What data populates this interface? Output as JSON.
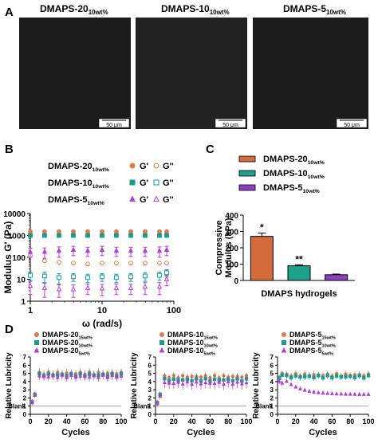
{
  "panels": {
    "A": {
      "letter": "A",
      "images": [
        {
          "title": "DMAPS-20",
          "subscript": "10wt%",
          "scale_bar": "50 μm"
        },
        {
          "title": "DMAPS-10",
          "subscript": "10wt%",
          "scale_bar": "50 μm"
        },
        {
          "title": "DMAPS-5",
          "subscript": "10wt%",
          "scale_bar": "50 μm"
        }
      ]
    },
    "B": {
      "letter": "B"
    },
    "C": {
      "letter": "C"
    },
    "D": {
      "letter": "D"
    }
  },
  "colors": {
    "dmaps20": "#e07a4a",
    "dmaps10": "#1a9a8c",
    "dmaps5": "#b23fd0",
    "bar20": "#d36b3b",
    "bar10": "#1fa08a",
    "bar5": "#8e3fbf",
    "blank_line": "#9aa0a6"
  },
  "chart_data": [
    {
      "id": "B",
      "type": "scatter",
      "xlabel": "ω (rad/s)",
      "ylabel": "Modulus G' (Pa)",
      "xscale": "log",
      "yscale": "log",
      "xlim": [
        1,
        100
      ],
      "ylim": [
        1,
        10000
      ],
      "xticks": [
        "1",
        "10",
        "100"
      ],
      "yticks": [
        "1",
        "10",
        "100",
        "1000",
        "10000"
      ],
      "x": [
        1.0,
        1.58,
        2.51,
        3.98,
        6.31,
        10.0,
        15.8,
        25.1,
        39.8,
        63.1,
        79.4
      ],
      "legend": [
        {
          "name": "DMAPS-20",
          "sub": "10wt%",
          "a": "G'",
          "b": "G''"
        },
        {
          "name": "DMAPS-10",
          "sub": "10wt%",
          "a": "G'",
          "b": "G''"
        },
        {
          "name": "DMAPS-5",
          "sub": "10wt%",
          "a": "G'",
          "b": "G''"
        }
      ],
      "series": [
        {
          "name": "DMAPS-20 G'",
          "color": "#e07a4a",
          "marker": "circle",
          "filled": true,
          "values": [
            1500,
            1500,
            1500,
            1500,
            1500,
            1500,
            1500,
            1500,
            1500,
            1500,
            1500
          ]
        },
        {
          "name": "DMAPS-20 G''",
          "color": "#e07a4a",
          "marker": "circle",
          "filled": false,
          "values": [
            120,
            70,
            60,
            55,
            50,
            55,
            55,
            55,
            55,
            55,
            55
          ]
        },
        {
          "name": "DMAPS-10 G'",
          "color": "#1a9a8c",
          "marker": "square",
          "filled": true,
          "values": [
            1000,
            1000,
            1000,
            1000,
            1000,
            1000,
            1000,
            1000,
            1000,
            1000,
            1000
          ]
        },
        {
          "name": "DMAPS-10 G''",
          "color": "#1a9a8c",
          "marker": "square",
          "filled": false,
          "values": [
            15,
            14,
            12,
            13,
            12,
            13,
            12,
            13,
            14,
            15,
            20
          ],
          "err": [
            6,
            7,
            6,
            5,
            5,
            5,
            5,
            5,
            6,
            6,
            7
          ]
        },
        {
          "name": "DMAPS-5 G'",
          "color": "#b23fd0",
          "marker": "triangle",
          "filled": true,
          "values": [
            180,
            180,
            200,
            220,
            200,
            220,
            200,
            200,
            200,
            200,
            220
          ],
          "err": [
            80,
            90,
            100,
            100,
            90,
            100,
            90,
            90,
            90,
            100,
            100
          ]
        },
        {
          "name": "DMAPS-5 G''",
          "color": "#b23fd0",
          "marker": "triangle",
          "filled": false,
          "values": [
            5,
            4,
            3.5,
            3.5,
            4,
            3.8,
            4,
            4,
            4.5,
            4.5,
            10
          ],
          "err": [
            3,
            2.5,
            2,
            2,
            2,
            2,
            2,
            2,
            2.5,
            2.5,
            5
          ]
        }
      ]
    },
    {
      "id": "C",
      "type": "bar",
      "xlabel": "DMAPS hydrogels",
      "ylabel": "Compressive Modulus (kPa)",
      "ylim": [
        0,
        400
      ],
      "yticks": [
        "0",
        "100",
        "200",
        "300",
        "400"
      ],
      "legend": [
        {
          "name": "DMAPS-20",
          "sub": "10wt%"
        },
        {
          "name": "DMAPS-10",
          "sub": "10wt%"
        },
        {
          "name": "DMAPS-5",
          "sub": "10wt%"
        }
      ],
      "categories": [
        "DMAPS-20",
        "DMAPS-10",
        "DMAPS-5"
      ],
      "values": [
        270,
        90,
        35
      ],
      "errors": [
        20,
        6,
        4
      ],
      "significance": [
        "*",
        "**",
        ""
      ],
      "colors": [
        "#d36b3b",
        "#1fa08a",
        "#8e3fbf"
      ]
    },
    {
      "id": "D",
      "type": "scatter",
      "panels": [
        {
          "legend": [
            {
              "name": "DMAPS-20",
              "sub": "15wt%"
            },
            {
              "name": "DMAPS-20",
              "sub": "10wt%"
            },
            {
              "name": "DMAPS-20",
              "sub": "5wt%"
            }
          ],
          "xlabel": "Cycles",
          "ylabel": "Relative Lubricity",
          "xlim": [
            0,
            100
          ],
          "ylim": [
            0,
            7
          ],
          "xticks": [
            "0",
            "20",
            "40",
            "60",
            "80",
            "100"
          ],
          "yticks": [
            "0",
            "1",
            "2",
            "3",
            "4",
            "5",
            "6",
            "7"
          ],
          "blank_label": "Blank",
          "blank_value": 1,
          "series": [
            {
              "color": "#e07a4a",
              "marker": "circle",
              "start": [
                1.6,
                2.5
              ],
              "level": 5.0,
              "err": 0.5
            },
            {
              "color": "#1a9a8c",
              "marker": "square",
              "start": [
                1.5,
                2.4
              ],
              "level": 4.8,
              "err": 0.5
            },
            {
              "color": "#b23fd0",
              "marker": "triangle",
              "start": [
                1.4,
                2.3
              ],
              "level": 4.6,
              "err": 0.5
            }
          ]
        },
        {
          "legend": [
            {
              "name": "DMAPS-10",
              "sub": "15wt%"
            },
            {
              "name": "DMAPS-10",
              "sub": "10wt%"
            },
            {
              "name": "DMAPS-10",
              "sub": "5wt%"
            }
          ],
          "xlabel": "Cycles",
          "ylabel": "Relative Lubricity",
          "xlim": [
            0,
            100
          ],
          "ylim": [
            0,
            7
          ],
          "xticks": [
            "0",
            "20",
            "40",
            "60",
            "80",
            "100"
          ],
          "yticks": [
            "0",
            "1",
            "2",
            "3",
            "4",
            "5",
            "6",
            "7"
          ],
          "blank_label": "Blank",
          "blank_value": 1,
          "series": [
            {
              "color": "#e07a4a",
              "marker": "circle",
              "start": [
                1.5,
                2.5
              ],
              "level": 4.6,
              "err": 0.4
            },
            {
              "color": "#1a9a8c",
              "marker": "square",
              "start": [
                1.4,
                2.4
              ],
              "level": 4.2,
              "err": 0.6
            },
            {
              "color": "#b23fd0",
              "marker": "triangle",
              "start": [
                1.3,
                2.2
              ],
              "level": 3.8,
              "err": 0.7
            }
          ]
        },
        {
          "legend": [
            {
              "name": "DMAPS-5",
              "sub": "15wt%"
            },
            {
              "name": "DMAPS-5",
              "sub": "10wt%"
            },
            {
              "name": "DMAPS-5",
              "sub": "5wt%"
            }
          ],
          "xlabel": "Cycles",
          "ylabel": "Relative Lubricity",
          "xlim": [
            0,
            100
          ],
          "ylim": [
            0,
            7
          ],
          "xticks": [
            "0",
            "20",
            "40",
            "60",
            "80",
            "100"
          ],
          "yticks": [
            "0",
            "1",
            "2",
            "3",
            "4",
            "5",
            "6",
            "7"
          ],
          "blank_label": "Blank",
          "blank_value": 1,
          "series": [
            {
              "color": "#e07a4a",
              "marker": "circle",
              "start": [
                4.5,
                5.0
              ],
              "level": 4.8,
              "err": 0.4
            },
            {
              "color": "#1a9a8c",
              "marker": "square",
              "start": [
                4.4,
                4.8
              ],
              "level": 4.6,
              "err": 0.4
            },
            {
              "color": "#b23fd0",
              "marker": "triangle",
              "start": [
                4.0,
                3.8
              ],
              "level": 2.4,
              "err": 0.15
            }
          ]
        }
      ]
    }
  ]
}
